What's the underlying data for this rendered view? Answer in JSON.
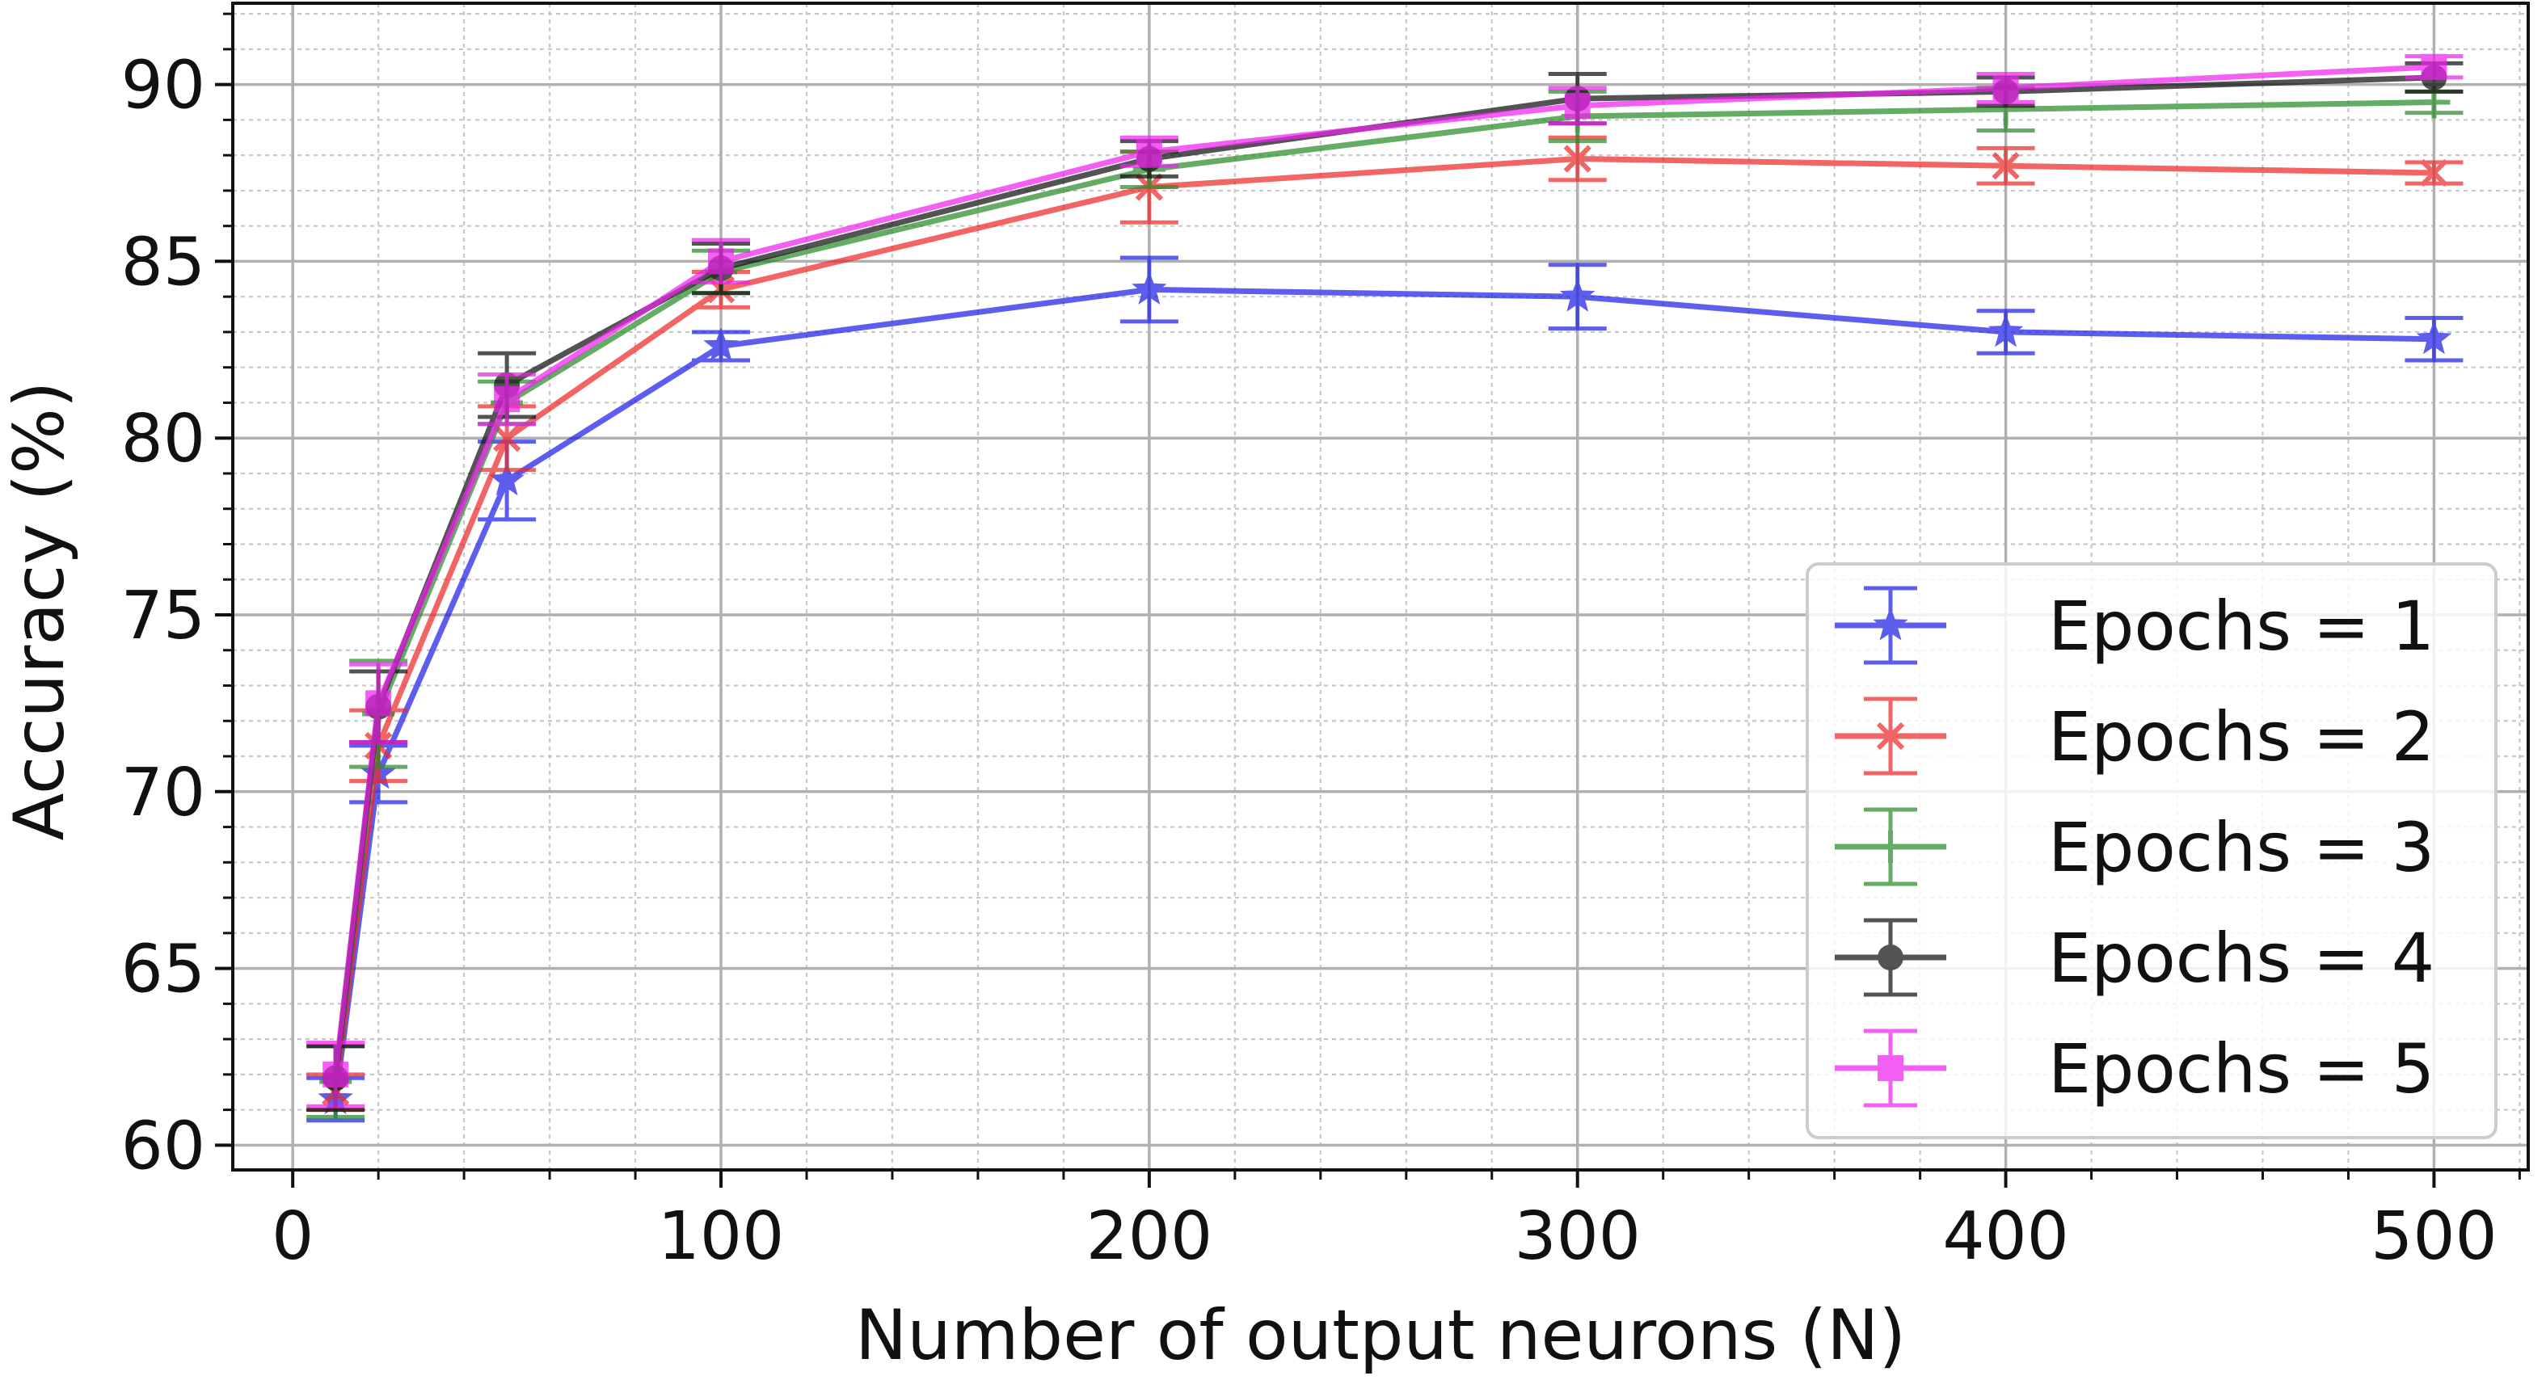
{
  "chart_data": {
    "type": "line",
    "title": "",
    "xlabel": "Number of output neurons (N)",
    "ylabel": "Accuracy (%)",
    "xlim": [
      -14,
      522
    ],
    "ylim": [
      59.3,
      92.3
    ],
    "xticks": [
      0,
      100,
      200,
      300,
      400,
      500
    ],
    "yticks": [
      60,
      65,
      70,
      75,
      80,
      85,
      90
    ],
    "grid": true,
    "minor_grid": true,
    "legend_position": "lower-right",
    "x": [
      10,
      20,
      50,
      100,
      200,
      300,
      400,
      500
    ],
    "series": [
      {
        "name": "Epochs = 1",
        "color": "#1f1fe8",
        "marker": "star",
        "values": [
          61.3,
          70.5,
          78.8,
          82.6,
          84.2,
          84.0,
          83.0,
          82.8
        ],
        "errors": [
          0.6,
          0.8,
          1.1,
          0.4,
          0.9,
          0.9,
          0.6,
          0.6
        ]
      },
      {
        "name": "Epochs = 2",
        "color": "#ee2a2a",
        "marker": "x",
        "values": [
          61.5,
          71.3,
          80.0,
          84.2,
          87.1,
          87.9,
          87.7,
          87.5
        ],
        "errors": [
          0.5,
          1.0,
          0.9,
          0.5,
          1.0,
          0.6,
          0.5,
          0.3
        ]
      },
      {
        "name": "Epochs = 3",
        "color": "#2a8c2a",
        "marker": "plus",
        "values": [
          61.8,
          72.2,
          81.0,
          84.7,
          87.6,
          89.1,
          89.3,
          89.5
        ],
        "errors": [
          1.0,
          1.5,
          0.6,
          0.6,
          0.5,
          0.7,
          0.6,
          0.3
        ]
      },
      {
        "name": "Epochs = 4",
        "color": "#111111",
        "marker": "circle",
        "values": [
          61.9,
          72.4,
          81.5,
          84.8,
          87.9,
          89.6,
          89.8,
          90.2
        ],
        "errors": [
          0.9,
          1.0,
          0.9,
          0.7,
          0.5,
          0.7,
          0.4,
          0.4
        ]
      },
      {
        "name": "Epochs = 5",
        "color": "#ee22ee",
        "marker": "square",
        "values": [
          62.0,
          72.5,
          81.1,
          85.0,
          88.1,
          89.4,
          89.9,
          90.5
        ],
        "errors": [
          0.9,
          1.1,
          0.7,
          0.6,
          0.4,
          0.5,
          0.4,
          0.3
        ]
      }
    ]
  }
}
